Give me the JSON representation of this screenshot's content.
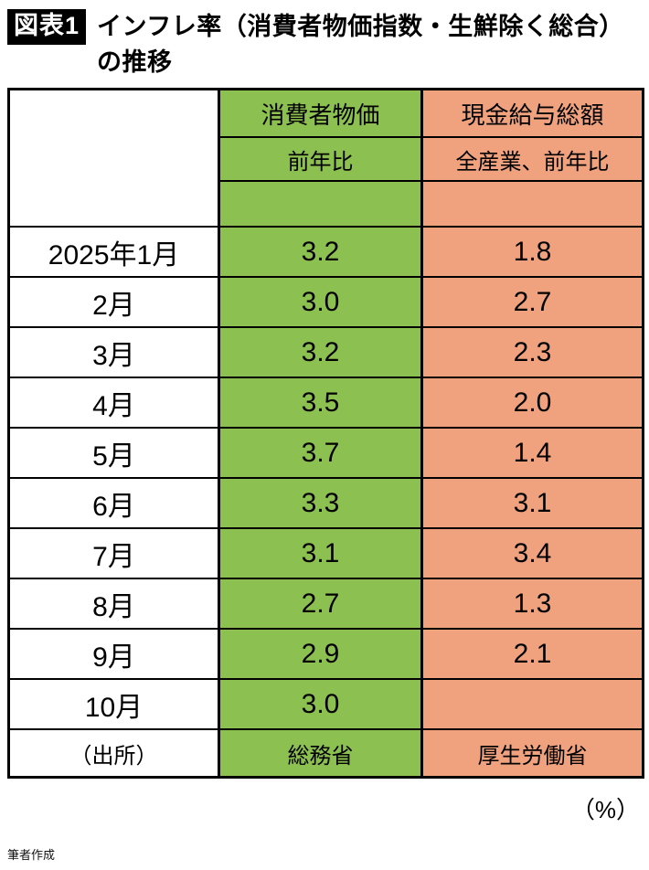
{
  "page": {
    "title_badge": "図表1",
    "title_text": "インフレ率（消費者物価指数・生鮮除く総合）の推移",
    "unit_label": "（%）",
    "credit": "筆者作成"
  },
  "colors": {
    "green": "#8cc051",
    "orange": "#f0a27e",
    "border": "#000000"
  },
  "table": {
    "cpi_header": "消費者物価",
    "cpi_subheader": "前年比",
    "wage_header": "現金給与総額",
    "wage_subheader": "全産業、前年比",
    "rows": [
      {
        "label": "2025年1月",
        "cpi": "3.2",
        "wage": "1.8"
      },
      {
        "label": "2月",
        "cpi": "3.0",
        "wage": "2.7"
      },
      {
        "label": "3月",
        "cpi": "3.2",
        "wage": "2.3"
      },
      {
        "label": "4月",
        "cpi": "3.5",
        "wage": "2.0"
      },
      {
        "label": "5月",
        "cpi": "3.7",
        "wage": "1.4"
      },
      {
        "label": "6月",
        "cpi": "3.3",
        "wage": "3.1"
      },
      {
        "label": "7月",
        "cpi": "3.1",
        "wage": "3.4"
      },
      {
        "label": "8月",
        "cpi": "2.7",
        "wage": "1.3"
      },
      {
        "label": "9月",
        "cpi": "2.9",
        "wage": "2.1"
      },
      {
        "label": "10月",
        "cpi": "3.0",
        "wage": ""
      }
    ],
    "source_row": {
      "label": "（出所）",
      "cpi": "総務省",
      "wage": "厚生労働省"
    }
  },
  "chart_data": {
    "type": "table",
    "title": "図表1 インフレ率（消費者物価指数・生鮮除く総合）の推移",
    "columns": [
      "",
      "消費者物価（前年比）",
      "現金給与総額（全産業、前年比）"
    ],
    "categories": [
      "2025年1月",
      "2月",
      "3月",
      "4月",
      "5月",
      "6月",
      "7月",
      "8月",
      "9月",
      "10月"
    ],
    "series": [
      {
        "name": "消費者物価 前年比",
        "source": "総務省",
        "values": [
          3.2,
          3.0,
          3.2,
          3.5,
          3.7,
          3.3,
          3.1,
          2.7,
          2.9,
          3.0
        ]
      },
      {
        "name": "現金給与総額 全産業、前年比",
        "source": "厚生労働省",
        "values": [
          1.8,
          2.7,
          2.3,
          2.0,
          1.4,
          3.1,
          3.4,
          1.3,
          2.1,
          null
        ]
      }
    ],
    "unit": "%"
  }
}
